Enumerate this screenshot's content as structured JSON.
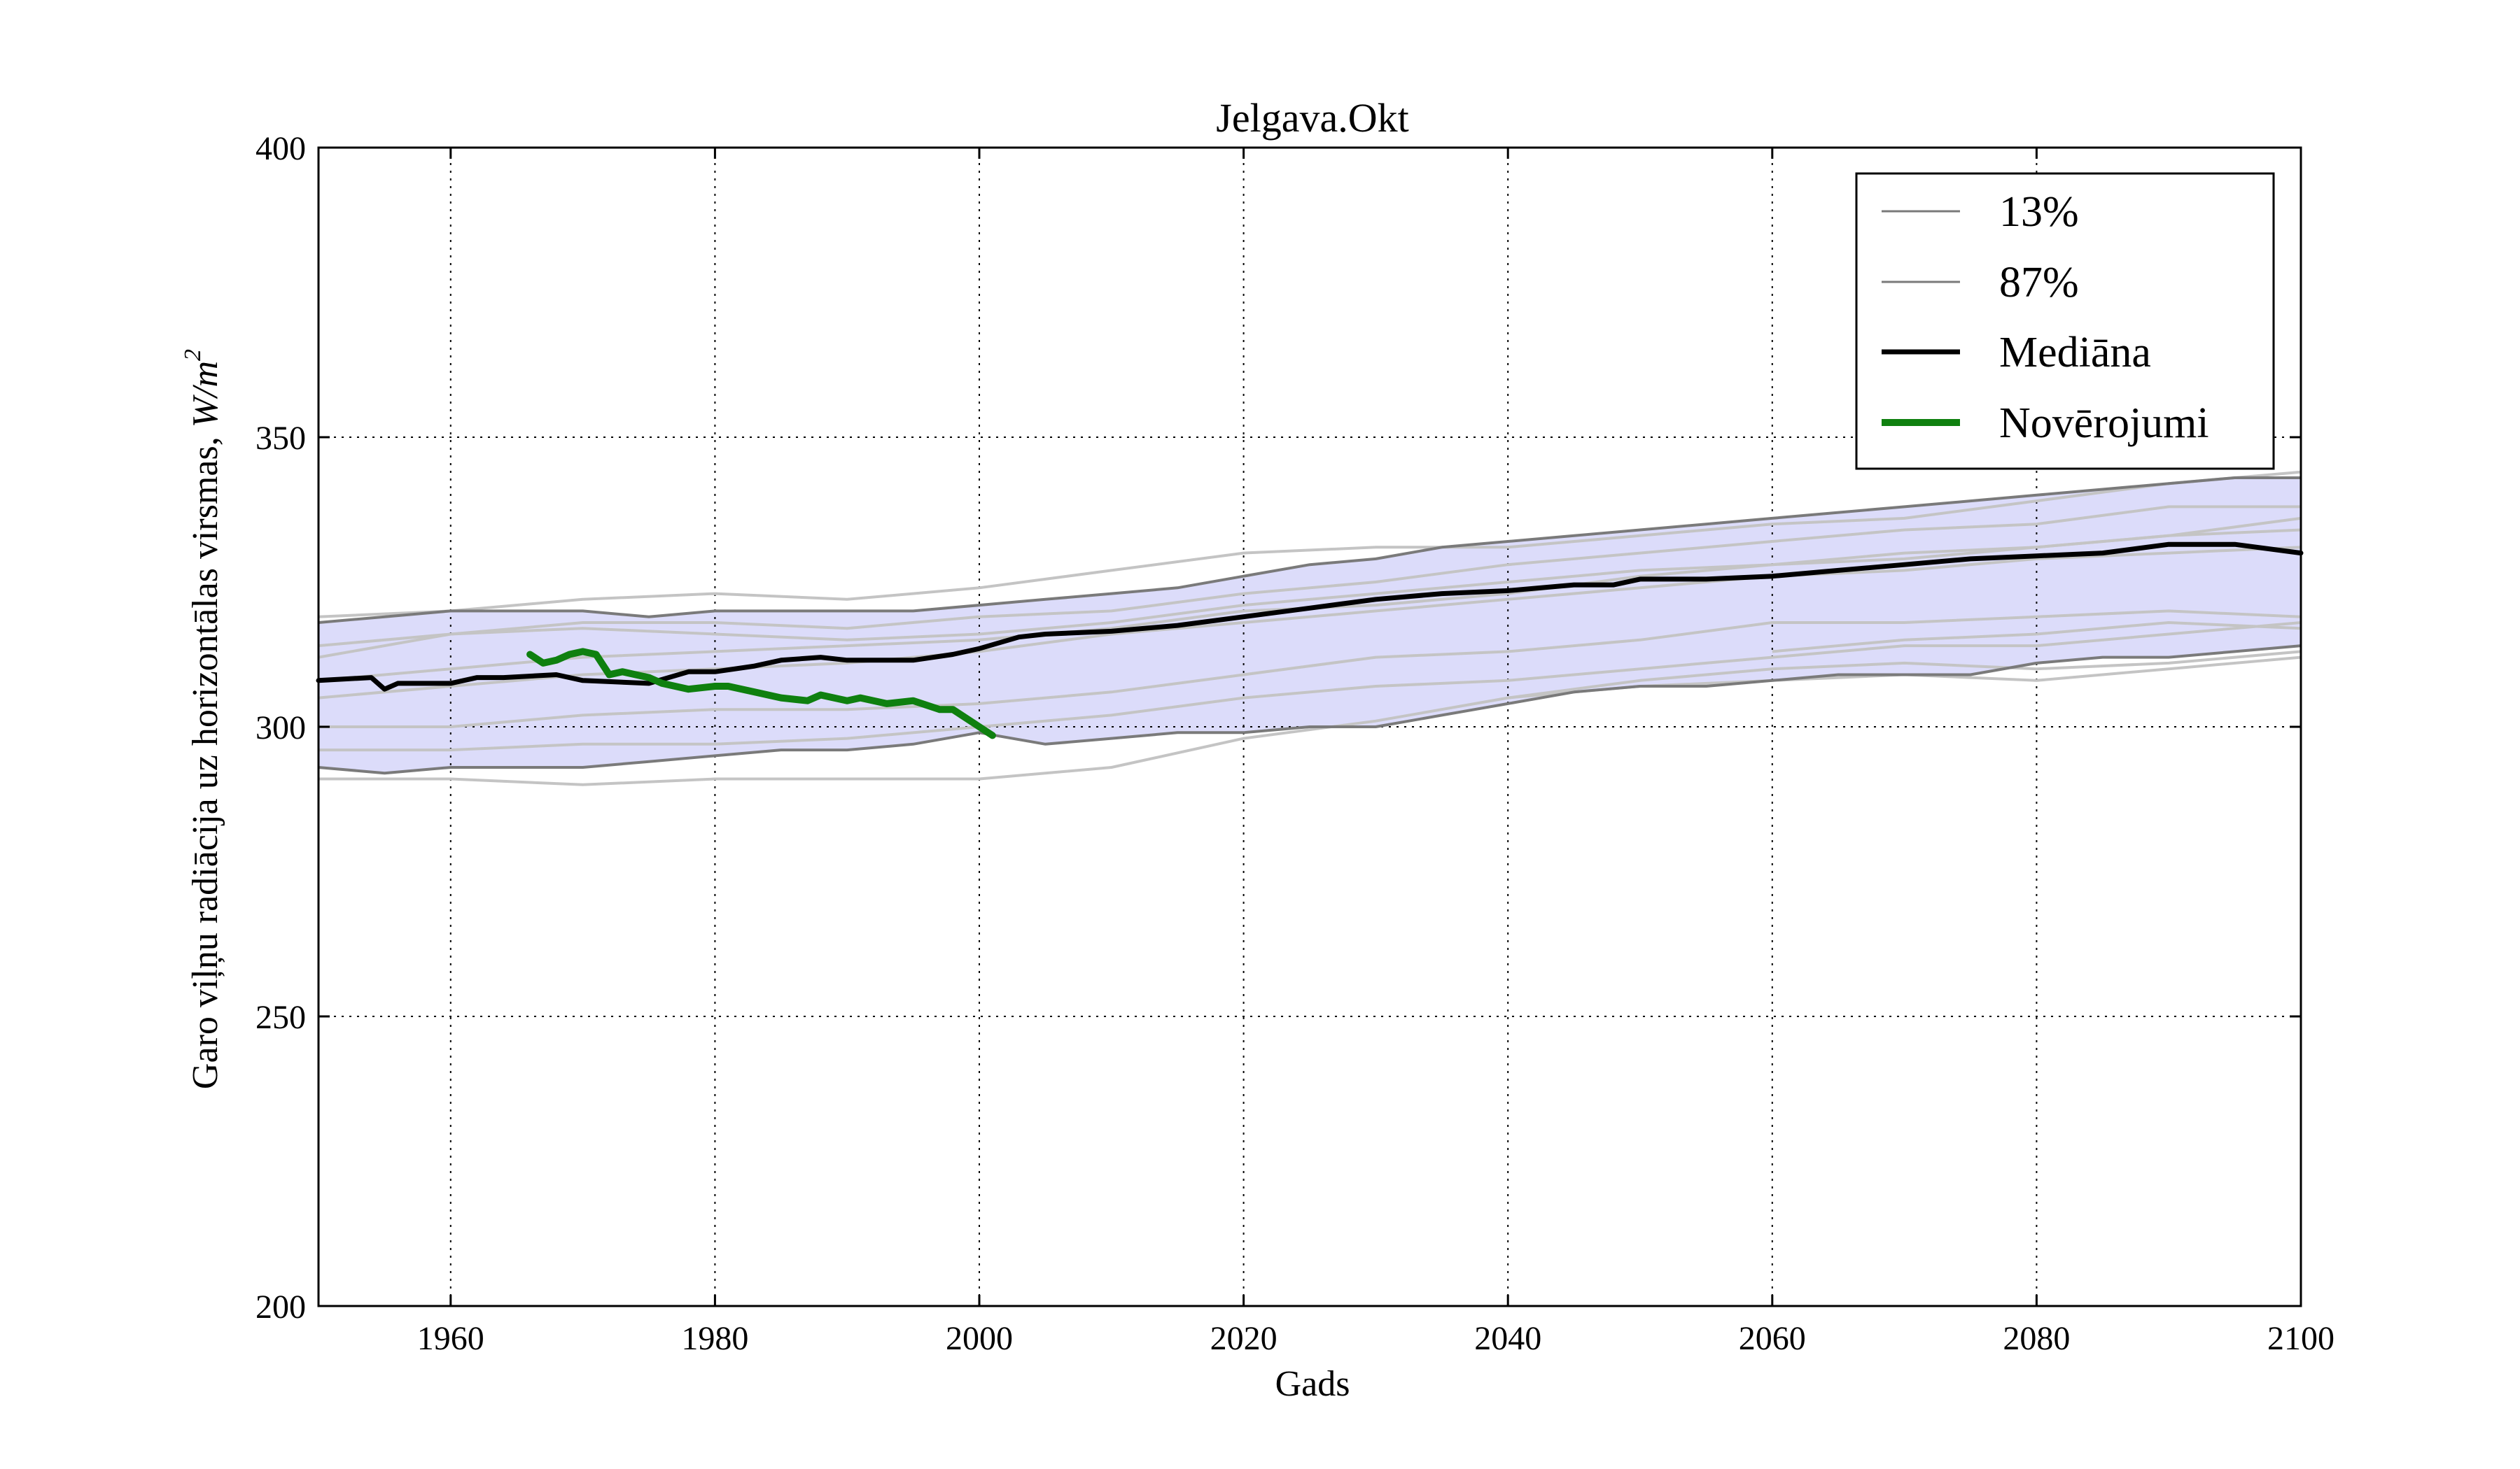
{
  "chart_data": {
    "type": "line",
    "title": "Jelgava.Okt",
    "xlabel": "Gads",
    "ylabel": "Garo viļņu radiācija uz horizontālas virsmas, W/m²",
    "ylabel_main": "Garo viļņu radiācija uz horizontālas virsmas, ",
    "ylabel_unit_base": "W/m",
    "ylabel_unit_exp": "2",
    "xlim": [
      1950,
      2100
    ],
    "ylim": [
      200,
      400
    ],
    "xticks": [
      1960,
      1980,
      2000,
      2020,
      2040,
      2060,
      2080,
      2100
    ],
    "yticks": [
      200,
      250,
      300,
      350,
      400
    ],
    "grid": true,
    "legend_position": "top-right",
    "legend": [
      "13%",
      "87%",
      "Mediāna",
      "Novērojumi"
    ],
    "colors": {
      "band": "#dcdcfa",
      "band_edge": "#7a7a7a",
      "ensemble": "#c4c4c4",
      "median": "#000000",
      "observations": "#0f800f"
    },
    "band": {
      "x": [
        1950,
        1955,
        1960,
        1965,
        1970,
        1975,
        1980,
        1985,
        1990,
        1995,
        2000,
        2005,
        2010,
        2015,
        2020,
        2025,
        2030,
        2035,
        2040,
        2045,
        2050,
        2055,
        2060,
        2065,
        2070,
        2075,
        2080,
        2085,
        2090,
        2095,
        2100
      ],
      "lower": [
        293,
        292,
        293,
        293,
        293,
        294,
        295,
        296,
        296,
        297,
        299,
        297,
        298,
        299,
        299,
        300,
        300,
        302,
        304,
        306,
        307,
        307,
        308,
        309,
        309,
        309,
        311,
        312,
        312,
        313,
        314
      ],
      "upper": [
        318,
        319,
        320,
        320,
        320,
        319,
        320,
        320,
        320,
        320,
        321,
        322,
        323,
        324,
        326,
        328,
        329,
        331,
        332,
        333,
        334,
        335,
        336,
        337,
        338,
        339,
        340,
        341,
        342,
        343,
        343
      ]
    },
    "ensemble": [
      {
        "x": [
          1950,
          1960,
          1970,
          1980,
          1990,
          2000,
          2010,
          2020,
          2030,
          2040,
          2050,
          2060,
          2070,
          2080,
          2090,
          2100
        ],
        "values": [
          291,
          291,
          290,
          291,
          291,
          291,
          293,
          298,
          301,
          305,
          308,
          310,
          311,
          310,
          311,
          313
        ]
      },
      {
        "x": [
          1950,
          1960,
          1970,
          1980,
          1990,
          2000,
          2010,
          2020,
          2030,
          2040,
          2050,
          2060,
          2070,
          2080,
          2090,
          2100
        ],
        "values": [
          319,
          320,
          322,
          323,
          322,
          324,
          327,
          330,
          331,
          331,
          333,
          335,
          336,
          339,
          342,
          344
        ]
      },
      {
        "x": [
          1950,
          1960,
          1970,
          1980,
          1990,
          2000,
          2010,
          2020,
          2030,
          2040,
          2050,
          2060,
          2070,
          2080,
          2090,
          2100
        ],
        "values": [
          312,
          316,
          318,
          318,
          317,
          319,
          320,
          323,
          325,
          328,
          330,
          332,
          334,
          335,
          338,
          338
        ]
      },
      {
        "x": [
          1950,
          1960,
          1970,
          1980,
          1990,
          2000,
          2010,
          2020,
          2030,
          2040,
          2050,
          2060,
          2070,
          2080,
          2090,
          2100
        ],
        "values": [
          305,
          307,
          309,
          310,
          311,
          313,
          316,
          318,
          320,
          322,
          324,
          326,
          327,
          329,
          330,
          331
        ]
      },
      {
        "x": [
          1950,
          1960,
          1970,
          1980,
          1990,
          2000,
          2010,
          2020,
          2030,
          2040,
          2050,
          2060,
          2070,
          2080,
          2090,
          2100
        ],
        "values": [
          300,
          300,
          302,
          303,
          303,
          304,
          306,
          309,
          312,
          313,
          315,
          318,
          318,
          319,
          320,
          319
        ]
      },
      {
        "x": [
          1950,
          1960,
          1970,
          1980,
          1990,
          2000,
          2010,
          2020,
          2030,
          2040,
          2050,
          2060,
          2070,
          2080,
          2090,
          2100
        ],
        "values": [
          296,
          296,
          297,
          297,
          298,
          300,
          302,
          305,
          307,
          308,
          310,
          312,
          314,
          314,
          316,
          318
        ]
      },
      {
        "x": [
          1950,
          1960,
          1970,
          1980,
          1990,
          2000,
          2010,
          2020,
          2030,
          2040,
          2050,
          2060,
          2070,
          2080,
          2090,
          2100
        ],
        "values": [
          308,
          310,
          312,
          313,
          314,
          315,
          317,
          320,
          321,
          323,
          326,
          328,
          330,
          331,
          333,
          334
        ]
      },
      {
        "x": [
          1950,
          1960,
          1970,
          1980,
          1990,
          2000,
          2010,
          2020,
          2030,
          2040,
          2050,
          2060,
          2070,
          2080,
          2090,
          2100
        ],
        "values": [
          314,
          316,
          317,
          316,
          315,
          316,
          318,
          321,
          323,
          325,
          327,
          328,
          329,
          331,
          333,
          336
        ]
      },
      {
        "x": [
          2040,
          2050,
          2060,
          2070,
          2080,
          2090,
          2100
        ],
        "values": [
          305,
          307,
          308,
          309,
          308,
          310,
          312
        ]
      },
      {
        "x": [
          2060,
          2070,
          2080,
          2090,
          2100
        ],
        "values": [
          313,
          315,
          316,
          318,
          317
        ]
      }
    ],
    "series": [
      {
        "name": "Mediāna",
        "x": [
          1950,
          1954,
          1955,
          1956,
          1960,
          1962,
          1964,
          1968,
          1970,
          1975,
          1978,
          1980,
          1983,
          1985,
          1988,
          1990,
          1995,
          1998,
          2000,
          2003,
          2005,
          2010,
          2015,
          2020,
          2025,
          2030,
          2035,
          2040,
          2045,
          2048,
          2050,
          2055,
          2060,
          2065,
          2070,
          2075,
          2080,
          2085,
          2090,
          2095,
          2100
        ],
        "values": [
          308,
          308.5,
          306.5,
          307.5,
          307.5,
          308.5,
          308.5,
          309,
          308,
          307.5,
          309.5,
          309.5,
          310.5,
          311.5,
          312,
          311.5,
          311.5,
          312.5,
          313.5,
          315.5,
          316,
          316.5,
          317.5,
          319,
          320.5,
          322,
          323,
          323.5,
          324.5,
          324.5,
          325.5,
          325.5,
          326,
          327,
          328,
          329,
          329.5,
          330,
          331.5,
          331.5,
          330
        ]
      },
      {
        "name": "Novērojumi",
        "x": [
          1966,
          1967,
          1968,
          1969,
          1970,
          1971,
          1972,
          1973,
          1974,
          1975,
          1976,
          1978,
          1980,
          1981,
          1983,
          1985,
          1987,
          1988,
          1990,
          1991,
          1993,
          1995,
          1997,
          1998,
          2000,
          2001
        ],
        "values": [
          312.5,
          311,
          311.5,
          312.5,
          313,
          312.5,
          309,
          309.5,
          309,
          308.5,
          307.5,
          306.5,
          307,
          307,
          306,
          305,
          304.5,
          305.5,
          304.5,
          305,
          304,
          304.5,
          303,
          303,
          300,
          298.5
        ]
      }
    ]
  }
}
